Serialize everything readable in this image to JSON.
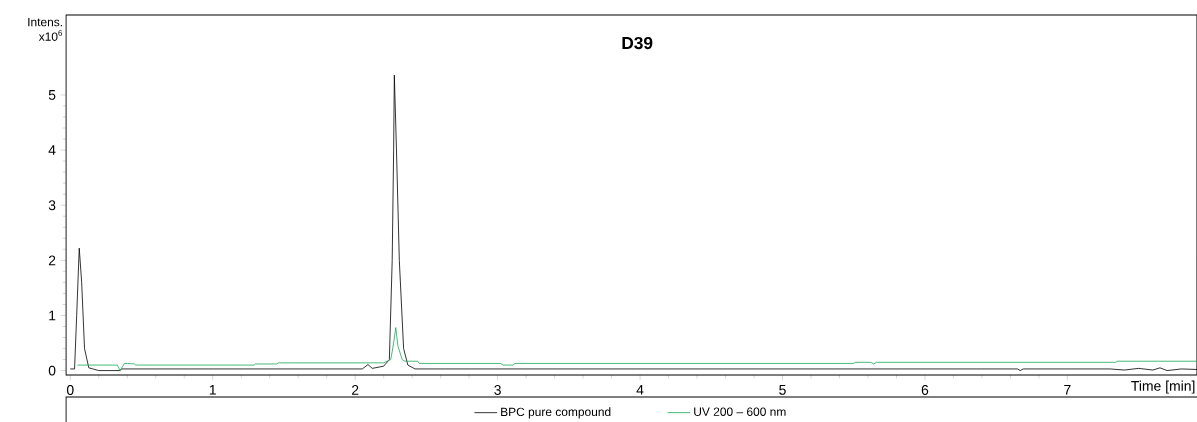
{
  "chart_data": {
    "type": "line",
    "title": "D39",
    "xlabel": "Time [min]",
    "ylabel": "Intens. x10$^{6}$",
    "xlim": [
      -0.03,
      7.91
    ],
    "ylim": [
      -0.08,
      6.45
    ],
    "xticks": [
      0,
      1,
      2,
      3,
      4,
      5,
      6,
      7
    ],
    "yticks": [
      0,
      1,
      2,
      3,
      4,
      5
    ],
    "grid": false,
    "legend": "bottom",
    "marker": "none",
    "line_style": "solid",
    "series": [
      {
        "name": "BPC pure compound",
        "color": "#000000",
        "x": [
          0,
          0.03,
          0.045,
          0.063,
          0.08,
          0.1,
          0.13,
          0.2,
          0.35,
          0.36,
          2.05,
          2.09,
          2.12,
          2.2,
          2.24,
          2.26,
          2.27,
          2.275,
          2.29,
          2.31,
          2.34,
          2.37,
          2.42,
          6.65,
          6.67,
          6.69,
          7.3,
          7.4,
          7.5,
          7.6,
          7.65,
          7.7,
          7.8,
          7.91
        ],
        "values": [
          0.03,
          0.03,
          1.0,
          2.22,
          1.6,
          0.4,
          0.05,
          0.0,
          0.0,
          0.03,
          0.03,
          0.11,
          0.04,
          0.08,
          0.2,
          2.0,
          4.0,
          5.36,
          4.0,
          2.0,
          0.4,
          0.1,
          0.03,
          0.03,
          0.0,
          0.03,
          0.03,
          0.01,
          0.04,
          0.01,
          0.05,
          0.0,
          0.03,
          0.02
        ]
      },
      {
        "name": "UV 200 – 600 nm",
        "color": "#1aaa55",
        "x": [
          0.05,
          0.33,
          0.35,
          0.38,
          0.4,
          0.45,
          0.46,
          1.29,
          1.3,
          1.45,
          1.46,
          2.2,
          2.25,
          2.27,
          2.285,
          2.3,
          2.33,
          2.35,
          2.44,
          2.45,
          3.02,
          3.04,
          3.11,
          3.12,
          5.5,
          5.51,
          5.62,
          5.64,
          5.66,
          7.34,
          7.35,
          7.91
        ],
        "values": [
          0.1,
          0.1,
          0.0,
          0.13,
          0.13,
          0.12,
          0.1,
          0.1,
          0.12,
          0.12,
          0.14,
          0.14,
          0.2,
          0.5,
          0.78,
          0.45,
          0.2,
          0.17,
          0.17,
          0.13,
          0.13,
          0.1,
          0.1,
          0.13,
          0.13,
          0.15,
          0.15,
          0.12,
          0.15,
          0.15,
          0.17,
          0.17
        ]
      }
    ]
  }
}
